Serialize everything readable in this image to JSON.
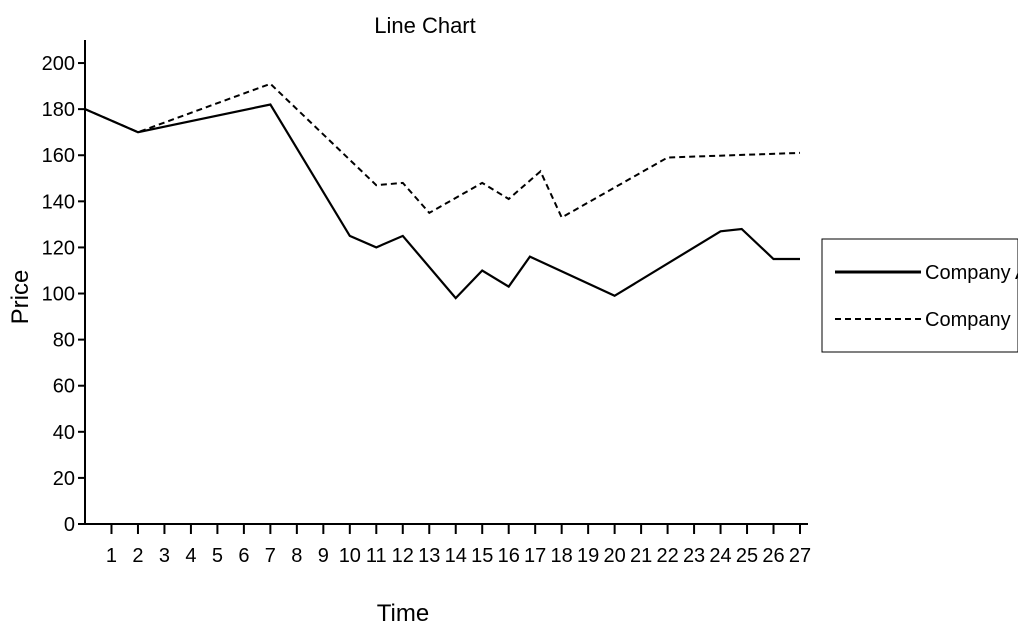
{
  "chart_data": {
    "type": "line",
    "title": "Line Chart",
    "xlabel": "Time",
    "ylabel": "Price",
    "xlim": [
      0,
      27
    ],
    "ylim": [
      0,
      210
    ],
    "x_ticks": [
      1,
      2,
      3,
      4,
      5,
      6,
      7,
      8,
      9,
      10,
      11,
      12,
      13,
      14,
      15,
      16,
      17,
      18,
      19,
      20,
      21,
      22,
      23,
      24,
      25,
      26,
      27
    ],
    "y_ticks": [
      0,
      20,
      40,
      60,
      80,
      100,
      120,
      140,
      160,
      180,
      200
    ],
    "grid": false,
    "legend_position": "right",
    "series": [
      {
        "name": "Company A",
        "style": "solid",
        "color": "#000000",
        "points": [
          [
            0,
            180
          ],
          [
            2,
            170
          ],
          [
            7,
            182
          ],
          [
            10,
            125
          ],
          [
            11,
            120
          ],
          [
            12,
            125
          ],
          [
            14,
            98
          ],
          [
            15,
            110
          ],
          [
            16,
            103
          ],
          [
            16.8,
            116
          ],
          [
            20,
            99
          ],
          [
            24,
            127
          ],
          [
            24.8,
            128
          ],
          [
            26,
            115
          ],
          [
            27,
            115
          ]
        ]
      },
      {
        "name": "Company B",
        "style": "dashed",
        "color": "#000000",
        "points": [
          [
            0,
            180
          ],
          [
            2,
            170
          ],
          [
            7,
            191
          ],
          [
            11,
            147
          ],
          [
            12,
            148
          ],
          [
            13,
            135
          ],
          [
            15,
            148
          ],
          [
            16,
            141
          ],
          [
            17.2,
            153
          ],
          [
            18,
            133
          ],
          [
            22,
            159
          ],
          [
            27,
            161
          ]
        ]
      }
    ]
  }
}
